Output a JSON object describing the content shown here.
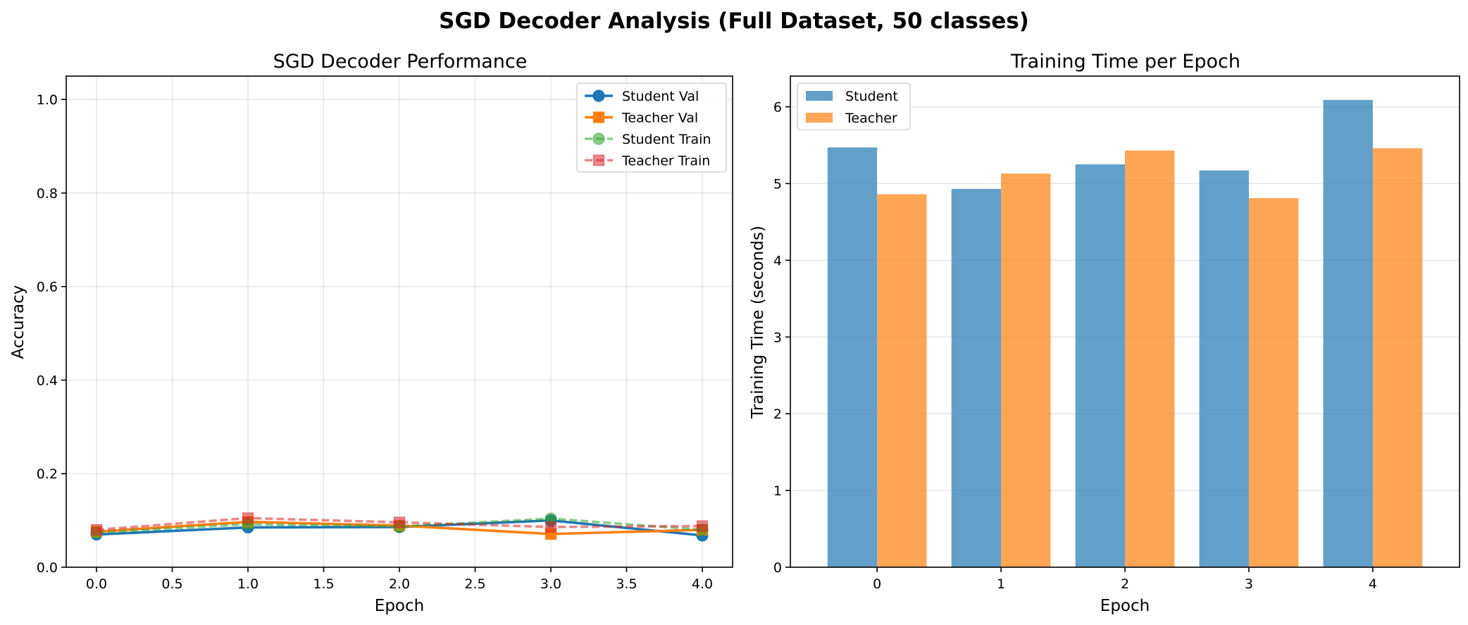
{
  "figure": {
    "suptitle": "SGD Decoder Analysis (Full Dataset, 50 classes)"
  },
  "colors": {
    "student_val": "#1f77b4",
    "teacher_val": "#ff7f0e",
    "student_train": "#2ca02c",
    "teacher_train": "#d62728",
    "student_bar": "#1f77b4",
    "teacher_bar": "#ff7f0e"
  },
  "chart_data": [
    {
      "type": "line",
      "title": "SGD Decoder Performance",
      "xlabel": "Epoch",
      "ylabel": "Accuracy",
      "xlim": [
        -0.2,
        4.2
      ],
      "ylim": [
        0.0,
        1.05
      ],
      "xticks": [
        "0.0",
        "0.5",
        "1.0",
        "1.5",
        "2.0",
        "2.5",
        "3.0",
        "3.5",
        "4.0"
      ],
      "yticks": [
        "0.0",
        "0.2",
        "0.4",
        "0.6",
        "0.8",
        "1.0"
      ],
      "grid": true,
      "legend_position": "top-right",
      "x": [
        0,
        1,
        2,
        3,
        4
      ],
      "series": [
        {
          "name": "Student Val",
          "values": [
            0.07,
            0.085,
            0.086,
            0.1,
            0.068
          ],
          "marker": "circle",
          "style": "solid"
        },
        {
          "name": "Teacher Val",
          "values": [
            0.076,
            0.097,
            0.089,
            0.071,
            0.08
          ],
          "marker": "square",
          "style": "solid"
        },
        {
          "name": "Student Train",
          "values": [
            0.074,
            0.092,
            0.087,
            0.104,
            0.08
          ],
          "marker": "circle",
          "style": "dashed"
        },
        {
          "name": "Teacher Train",
          "values": [
            0.08,
            0.105,
            0.096,
            0.086,
            0.088
          ],
          "marker": "square",
          "style": "dashed"
        }
      ]
    },
    {
      "type": "bar",
      "title": "Training Time per Epoch",
      "xlabel": "Epoch",
      "ylabel": "Training Time (seconds)",
      "ylim": [
        0,
        6.4
      ],
      "categories": [
        "0",
        "1",
        "2",
        "3",
        "4"
      ],
      "yticks": [
        "0",
        "1",
        "2",
        "3",
        "4",
        "5",
        "6"
      ],
      "grid": true,
      "legend_position": "top-left",
      "series": [
        {
          "name": "Student",
          "values": [
            5.47,
            4.93,
            5.25,
            5.17,
            6.09
          ]
        },
        {
          "name": "Teacher",
          "values": [
            4.86,
            5.13,
            5.43,
            4.81,
            5.46
          ]
        }
      ]
    }
  ]
}
